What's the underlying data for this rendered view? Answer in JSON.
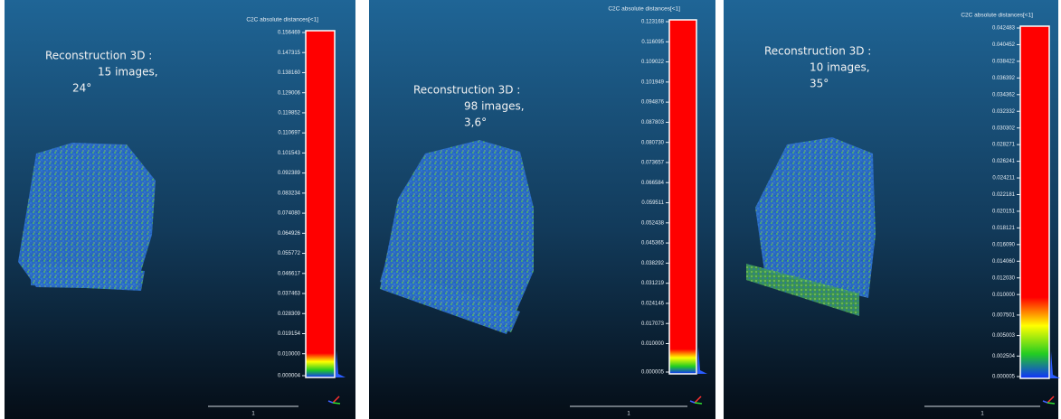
{
  "panels": [
    {
      "scale_title": "C2C absolute distances[<1]",
      "annotation": [
        "Reconstruction 3D :",
        "15 images,",
        "24°"
      ],
      "scale_ticks": [
        "0.156469",
        "0.147315",
        "0.138160",
        "0.129006",
        "0.119852",
        "0.110697",
        "0.101543",
        "0.092389",
        "0.083234",
        "0.074080",
        "0.064926",
        "0.055772",
        "0.046617",
        "0.037463",
        "0.028309",
        "0.019154",
        "0.010000",
        "0.000004"
      ],
      "scale_bar_label": "1"
    },
    {
      "scale_title": "C2C absolute distances[<1]",
      "annotation": [
        "Reconstruction 3D :",
        "98 images,",
        "3,6°"
      ],
      "scale_ticks": [
        "0.123168",
        "0.116095",
        "0.109022",
        "0.101949",
        "0.094876",
        "0.087803",
        "0.080730",
        "0.073657",
        "0.066584",
        "0.059511",
        "0.052438",
        "0.045365",
        "0.038292",
        "0.031219",
        "0.024146",
        "0.017073",
        "0.010000",
        "0.000005"
      ],
      "scale_bar_label": "1"
    },
    {
      "scale_title": "C2C absolute distances[<1]",
      "annotation": [
        "Reconstruction 3D :",
        "10 images,",
        "35°"
      ],
      "scale_ticks": [
        "0.042483",
        "0.040452",
        "0.038422",
        "0.036392",
        "0.034362",
        "0.032332",
        "0.030302",
        "0.028271",
        "0.026241",
        "0.024211",
        "0.022181",
        "0.020151",
        "0.018121",
        "0.016090",
        "0.014060",
        "0.012030",
        "0.010000",
        "0.007501",
        "0.005003",
        "0.002504",
        "0.000005"
      ],
      "scale_bar_label": "1"
    }
  ]
}
